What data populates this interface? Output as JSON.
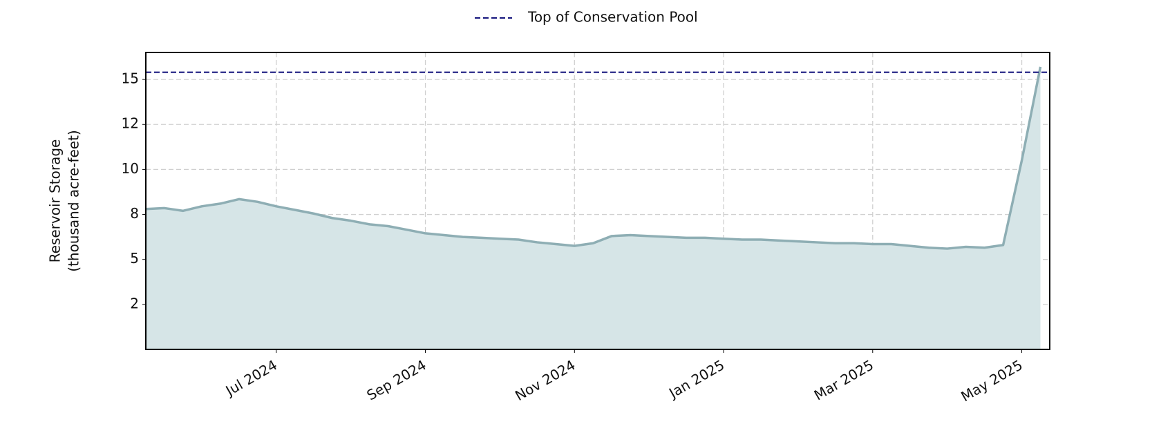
{
  "chart_data": {
    "type": "area",
    "ylabel": [
      "Reservoir Storage",
      "(thousand acre-feet)"
    ],
    "categories": [
      null,
      null,
      null,
      null,
      null,
      null,
      null,
      "Jul 2024",
      null,
      null,
      null,
      null,
      null,
      null,
      null,
      "Sep 2024",
      null,
      null,
      null,
      null,
      null,
      null,
      null,
      "Nov 2024",
      null,
      null,
      null,
      null,
      null,
      null,
      null,
      "Jan 2025",
      null,
      null,
      null,
      null,
      null,
      null,
      null,
      "Mar 2025",
      null,
      null,
      null,
      null,
      null,
      null,
      null,
      "May 2025",
      null
    ],
    "values": [
      7.8,
      7.85,
      7.7,
      7.95,
      8.1,
      8.35,
      8.2,
      7.95,
      7.75,
      7.55,
      7.3,
      7.15,
      6.95,
      6.85,
      6.65,
      6.45,
      6.35,
      6.25,
      6.2,
      6.15,
      6.1,
      5.95,
      5.85,
      5.75,
      5.9,
      6.3,
      6.35,
      6.3,
      6.25,
      6.2,
      6.2,
      6.15,
      6.1,
      6.1,
      6.05,
      6.0,
      5.95,
      5.9,
      5.9,
      5.85,
      5.85,
      5.75,
      5.65,
      5.6,
      5.7,
      5.65,
      5.8,
      10.5,
      15.7
    ],
    "color": "#8eaeb4",
    "fill_color": "#d6e5e7",
    "reference_lines": [
      {
        "name": "Top of Conservation Pool",
        "value": 15.4,
        "color": "#1a1a80",
        "style": "dashed"
      }
    ],
    "ylim": [
      0,
      16.5
    ],
    "yticks": [
      {
        "value": 2.5,
        "label": "2"
      },
      5,
      {
        "value": 7.5,
        "label": "8"
      },
      10,
      {
        "value": 12.5,
        "label": "12"
      },
      15
    ],
    "grid": true,
    "legend": "top"
  }
}
